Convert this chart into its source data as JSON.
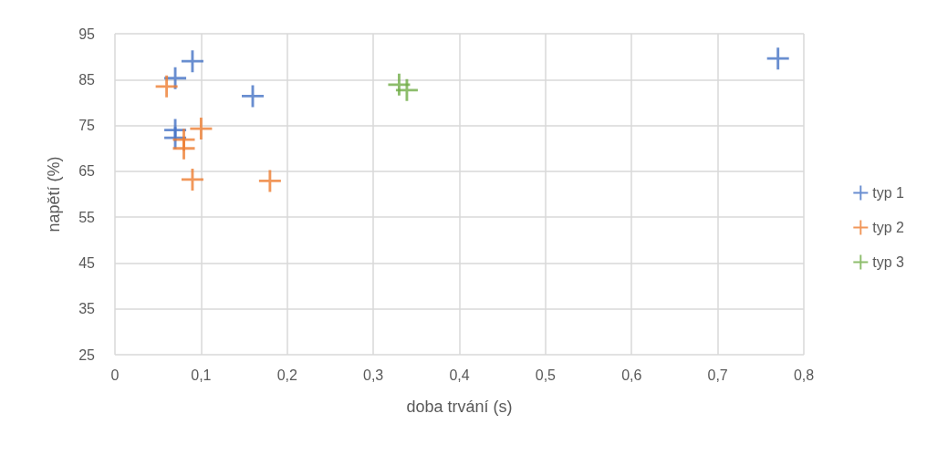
{
  "chart_data": {
    "type": "scatter",
    "xlabel": "doba trvání (s)",
    "ylabel": "napětí (%)",
    "xlim": [
      0,
      0.8
    ],
    "xticks": [
      {
        "value": 0,
        "label": "0"
      },
      {
        "value": 0.1,
        "label": "0,1"
      },
      {
        "value": 0.2,
        "label": "0,2"
      },
      {
        "value": 0.3,
        "label": "0,3"
      },
      {
        "value": 0.4,
        "label": "0,4"
      },
      {
        "value": 0.5,
        "label": "0,5"
      },
      {
        "value": 0.6,
        "label": "0,6"
      },
      {
        "value": 0.7,
        "label": "0,7"
      },
      {
        "value": 0.8,
        "label": "0,8"
      }
    ],
    "ylim": [
      25,
      95
    ],
    "yticks": [
      25,
      35,
      45,
      55,
      65,
      75,
      85,
      95
    ],
    "grid": true,
    "legend": "right",
    "marker": "cross",
    "series": [
      {
        "name": "typ 1",
        "color": "#4472c4",
        "x": [
          0.09,
          0.07,
          0.16,
          0.07,
          0.07,
          0.77
        ],
        "values": [
          89,
          85.3,
          81.4,
          74,
          72.3,
          89.6
        ]
      },
      {
        "name": "typ 2",
        "color": "#ed7d31",
        "x": [
          0.06,
          0.1,
          0.08,
          0.08,
          0.09,
          0.18
        ],
        "values": [
          83.5,
          74.3,
          71.9,
          70,
          63.2,
          62.9
        ]
      },
      {
        "name": "typ 3",
        "color": "#70ad47",
        "x": [
          0.33,
          0.339
        ],
        "values": [
          83.9,
          82.7
        ]
      }
    ]
  }
}
